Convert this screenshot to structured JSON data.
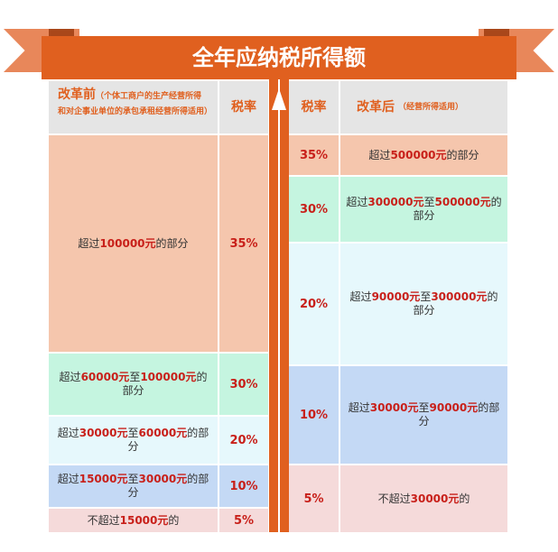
{
  "title": "全年应纳税所得额",
  "colors": {
    "orange": "#e0601f",
    "red": "#c8201a"
  },
  "left": {
    "header": {
      "label": "改革前",
      "note": "（个体工商户的生产经营所得和对企事业单位的承包承租经营所得适用）",
      "rate_label": "税率"
    },
    "rows": [
      {
        "rate": "35%",
        "parts": [
          [
            "超过",
            0
          ],
          [
            "100000元",
            1
          ],
          [
            "的部分",
            0
          ]
        ]
      },
      {
        "rate": "30%",
        "parts": [
          [
            "超过",
            0
          ],
          [
            "60000元",
            1
          ],
          [
            "至",
            0
          ],
          [
            "100000元",
            1
          ],
          [
            "的部分",
            0
          ]
        ]
      },
      {
        "rate": "20%",
        "parts": [
          [
            "超过",
            0
          ],
          [
            "30000元",
            1
          ],
          [
            "至",
            0
          ],
          [
            "60000元",
            1
          ],
          [
            "的部分",
            0
          ]
        ]
      },
      {
        "rate": "10%",
        "parts": [
          [
            "超过",
            0
          ],
          [
            "15000元",
            1
          ],
          [
            "至",
            0
          ],
          [
            "30000元",
            1
          ],
          [
            "的部分",
            0
          ]
        ]
      },
      {
        "rate": "5%",
        "parts": [
          [
            "不超过",
            0
          ],
          [
            "15000元",
            1
          ],
          [
            "的",
            0
          ]
        ]
      }
    ]
  },
  "right": {
    "header": {
      "label": "改革后",
      "note": "（经营所得适用）",
      "rate_label": "税率"
    },
    "rows": [
      {
        "rate": "35%",
        "parts": [
          [
            "超过",
            0
          ],
          [
            "500000元",
            1
          ],
          [
            "的部分",
            0
          ]
        ]
      },
      {
        "rate": "30%",
        "parts": [
          [
            "超过",
            0
          ],
          [
            "300000元",
            1
          ],
          [
            "至",
            0
          ],
          [
            "500000元",
            1
          ],
          [
            "的部分",
            0
          ]
        ]
      },
      {
        "rate": "20%",
        "parts": [
          [
            "超过",
            0
          ],
          [
            "90000元",
            1
          ],
          [
            "至",
            0
          ],
          [
            "300000元",
            1
          ],
          [
            "的部分",
            0
          ]
        ]
      },
      {
        "rate": "10%",
        "parts": [
          [
            "超过",
            0
          ],
          [
            "30000元",
            1
          ],
          [
            "至",
            0
          ],
          [
            "90000元",
            1
          ],
          [
            "的部分",
            0
          ]
        ]
      },
      {
        "rate": "5%",
        "parts": [
          [
            "不超过",
            0
          ],
          [
            "30000元",
            1
          ],
          [
            "的",
            0
          ]
        ]
      }
    ]
  }
}
